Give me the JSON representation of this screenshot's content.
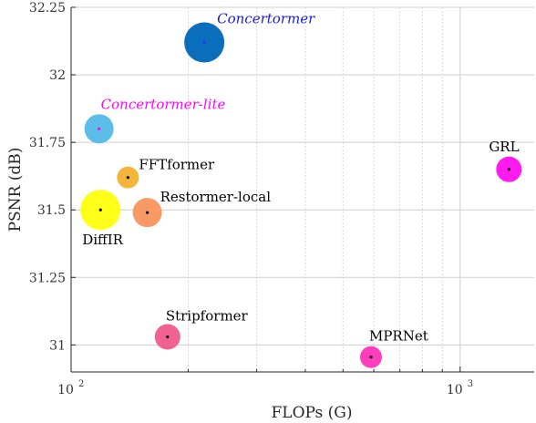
{
  "chart_data": {
    "type": "scatter",
    "title": "",
    "xlabel": "FLOPs (G)",
    "ylabel": "PSNR (dB)",
    "xscale": "log",
    "xlim": [
      100,
      1550
    ],
    "ylim": [
      30.9,
      32.25
    ],
    "grid": true,
    "x_ticks": [
      {
        "value": 100,
        "label": "10",
        "exp": "2"
      },
      {
        "value": 1000,
        "label": "10",
        "exp": "3"
      }
    ],
    "y_ticks": [
      {
        "value": 31,
        "label": "31"
      },
      {
        "value": 31.25,
        "label": "31.25"
      },
      {
        "value": 31.5,
        "label": "31.5"
      },
      {
        "value": 31.75,
        "label": "31.75"
      },
      {
        "value": 32,
        "label": "32"
      },
      {
        "value": 32.25,
        "label": "32.25"
      }
    ],
    "points": [
      {
        "name": "Concertormer",
        "x": 220,
        "y": 32.12,
        "size": 22,
        "color": "#0a6ebd",
        "dot": "#2233ff",
        "label_color": "#1a1adb",
        "italic": true,
        "label_pos": "top-right"
      },
      {
        "name": "Concertormer-lite",
        "x": 118,
        "y": 31.8,
        "size": 16,
        "color": "#5bbde8",
        "dot": "#ff00ff",
        "label_color": "#ff00ff",
        "italic": true,
        "label_pos": "top-right"
      },
      {
        "name": "FFTformer",
        "x": 140,
        "y": 31.62,
        "size": 12,
        "color": "#f3b53a",
        "dot": "#000000",
        "label_color": "#000000",
        "italic": false,
        "label_pos": "top-right"
      },
      {
        "name": "DiffIR",
        "x": 119,
        "y": 31.5,
        "size": 22,
        "color": "#ffff1a",
        "dot": "#000000",
        "label_color": "#000000",
        "italic": false,
        "label_pos": "bottom-left"
      },
      {
        "name": "Restormer-local",
        "x": 157,
        "y": 31.49,
        "size": 16,
        "color": "#f79a66",
        "dot": "#000000",
        "label_color": "#000000",
        "italic": false,
        "label_pos": "top-right"
      },
      {
        "name": "Stripformer",
        "x": 177,
        "y": 31.03,
        "size": 14,
        "color": "#f06292",
        "dot": "#000000",
        "label_color": "#000000",
        "italic": false,
        "label_pos": "top-right"
      },
      {
        "name": "MPRNet",
        "x": 590,
        "y": 30.955,
        "size": 12,
        "color": "#ff3dbd",
        "dot": "#000000",
        "label_color": "#000000",
        "italic": false,
        "label_pos": "top-right"
      },
      {
        "name": "GRL",
        "x": 1335,
        "y": 31.65,
        "size": 14,
        "color": "#ff1aef",
        "dot": "#000000",
        "label_color": "#000000",
        "italic": false,
        "label_pos": "top-left"
      }
    ]
  }
}
